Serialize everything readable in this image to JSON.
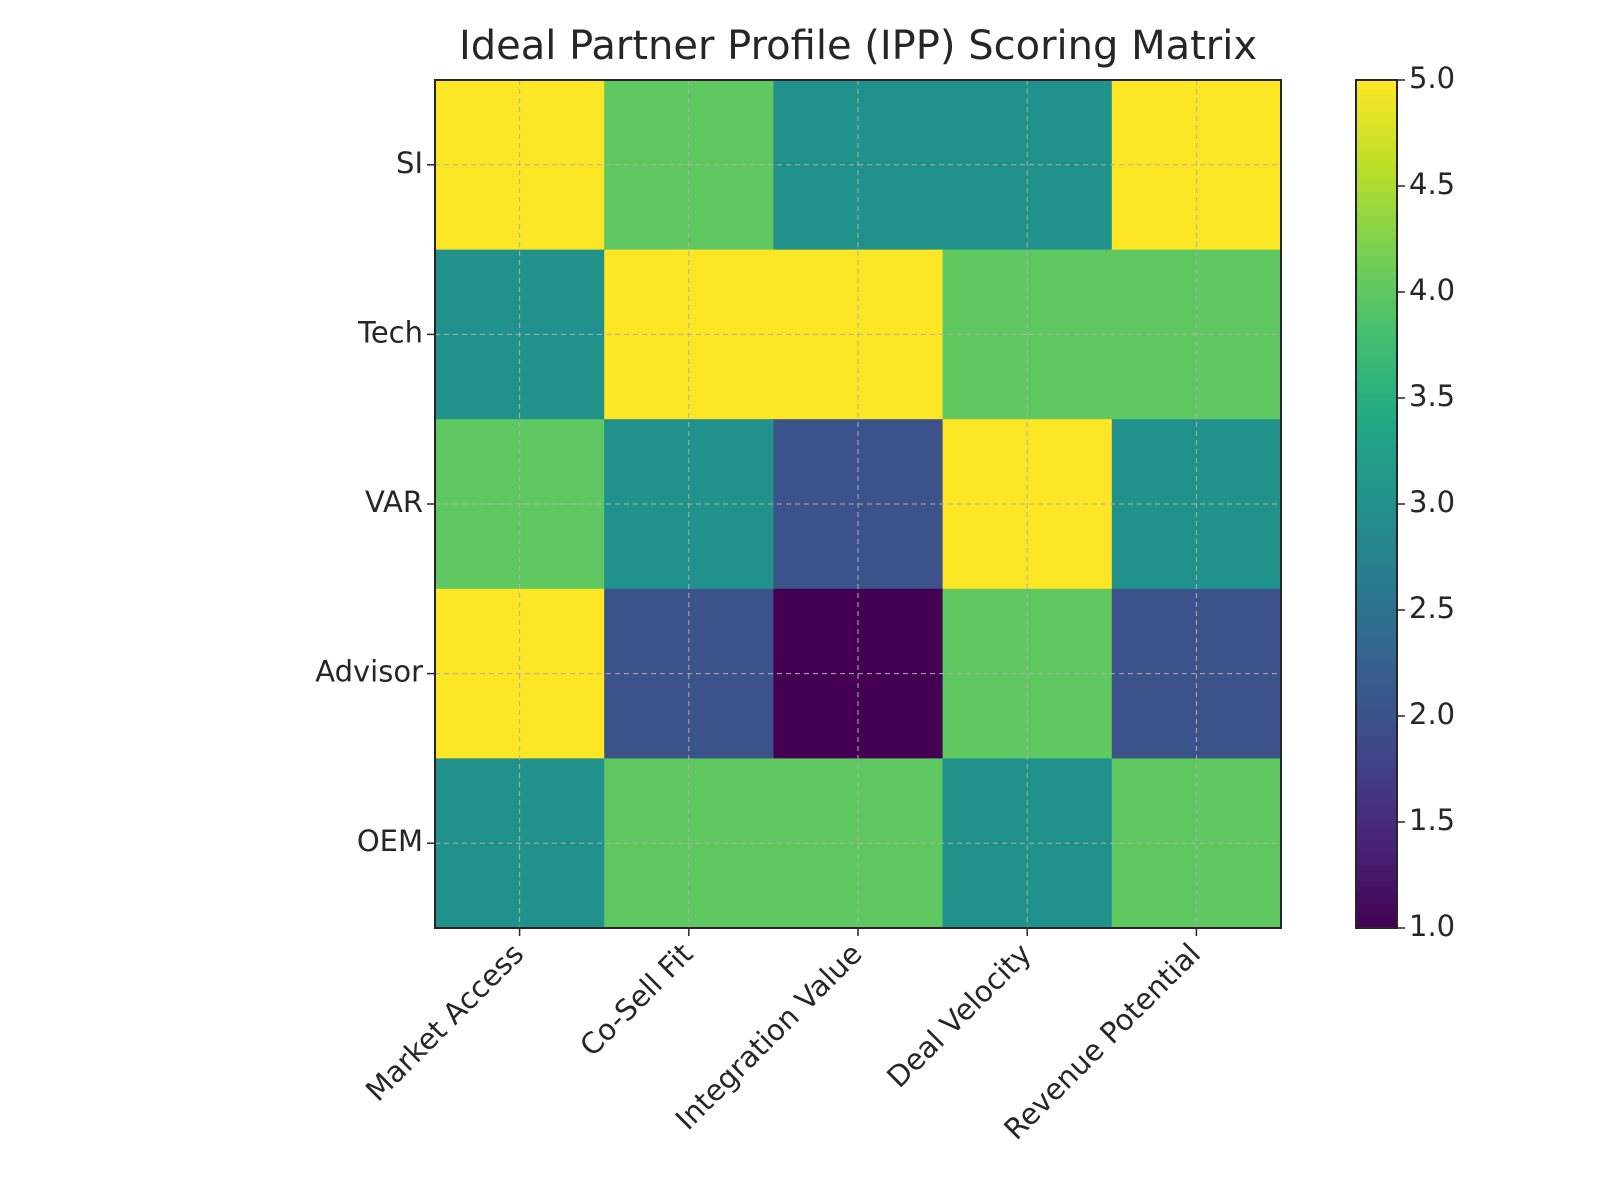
{
  "chart_data": {
    "type": "heatmap",
    "title": "Ideal Partner Profile (IPP) Scoring Matrix",
    "x_categories": [
      "Market Access",
      "Co-Sell Fit",
      "Integration Value",
      "Deal Velocity",
      "Revenue Potential"
    ],
    "y_categories": [
      "SI",
      "Tech",
      "VAR",
      "Advisor",
      "OEM"
    ],
    "values": [
      [
        5,
        4,
        3,
        3,
        5
      ],
      [
        3,
        5,
        5,
        4,
        4
      ],
      [
        4,
        3,
        2,
        5,
        3
      ],
      [
        5,
        2,
        1,
        4,
        2
      ],
      [
        3,
        4,
        4,
        3,
        4
      ]
    ],
    "colormap": "viridis",
    "clim": [
      1,
      5
    ],
    "cticks": [
      {
        "value": 1,
        "label": "1.0"
      },
      {
        "value": 1.5,
        "label": "1.5"
      },
      {
        "value": 2,
        "label": "2.0"
      },
      {
        "value": 2.5,
        "label": "2.5"
      },
      {
        "value": 3,
        "label": "3.0"
      },
      {
        "value": 3.5,
        "label": "3.5"
      },
      {
        "value": 4,
        "label": "4.0"
      },
      {
        "value": 4.5,
        "label": "4.5"
      },
      {
        "value": 5,
        "label": "5.0"
      }
    ],
    "grid": true
  }
}
